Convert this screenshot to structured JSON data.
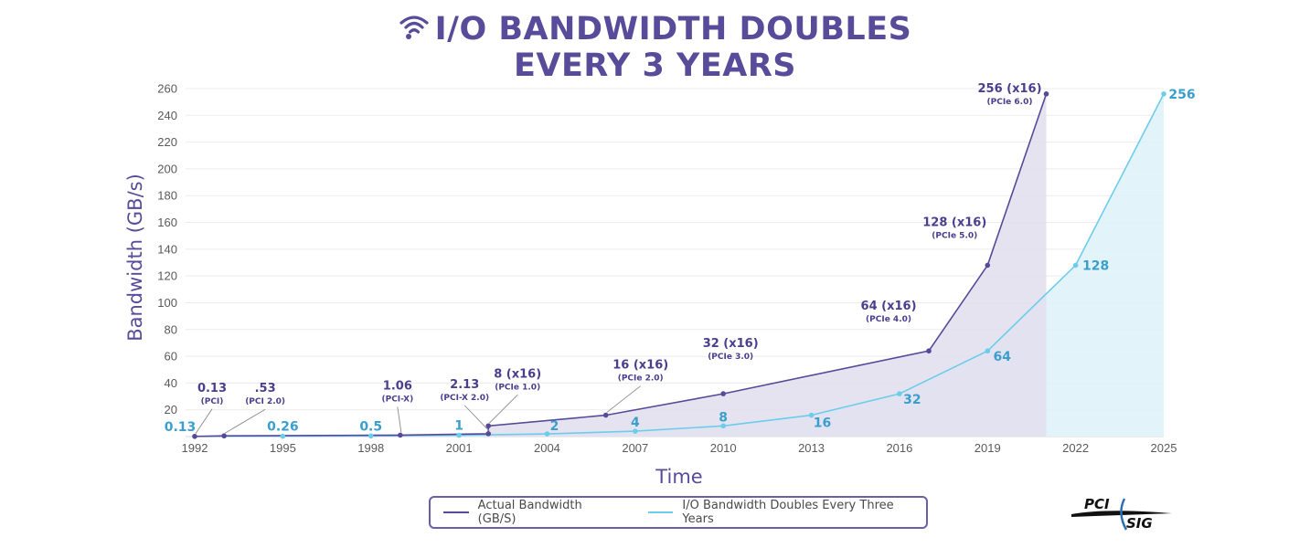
{
  "header": {
    "title_line1": "I/O BANDWIDTH DOUBLES",
    "title_line2": "EVERY 3 YEARS",
    "icon": "wifi-icon"
  },
  "colors": {
    "actual": "#564A98",
    "actual_fill": "#E2DEEE",
    "ideal": "#6CCDEB",
    "ideal_fill": "#DFF2FA",
    "title": "#574B9A",
    "ideal_label": "#3A9FCC"
  },
  "chart_data": {
    "type": "area",
    "xlabel": "Time",
    "ylabel": "Bandwidth (GB/s)",
    "xlim": [
      1992,
      2025
    ],
    "ylim": [
      0,
      265
    ],
    "x_ticks": [
      "1992",
      "1995",
      "1998",
      "2001",
      "2004",
      "2007",
      "2010",
      "2013",
      "2016",
      "2019",
      "2022",
      "2025"
    ],
    "y_ticks": [
      "20",
      "40",
      "60",
      "80",
      "100",
      "120",
      "140",
      "160",
      "180",
      "200",
      "220",
      "240",
      "260"
    ],
    "grid": "horizontal",
    "legend_position": "bottom-center",
    "series": [
      {
        "name": "Actual Bandwidth (GB/S)",
        "points": [
          {
            "x": 1992,
            "y": 0.13,
            "label": "0.13",
            "sub": "(PCI)"
          },
          {
            "x": 1993,
            "y": 0.53,
            "label": ".53",
            "sub": "(PCI 2.0)"
          },
          {
            "x": 1999,
            "y": 1.06,
            "label": "1.06",
            "sub": "(PCI-X)"
          },
          {
            "x": 2002,
            "y": 2.13,
            "label": "2.13",
            "sub": "(PCI-X 2.0)"
          },
          {
            "x": 2002,
            "y": 8,
            "label": "8 (x16)",
            "sub": "(PCIe 1.0)"
          },
          {
            "x": 2006,
            "y": 16,
            "label": "16 (x16)",
            "sub": "(PCIe 2.0)"
          },
          {
            "x": 2010,
            "y": 32,
            "label": "32 (x16)",
            "sub": "(PCIe 3.0)"
          },
          {
            "x": 2017,
            "y": 64,
            "label": "64 (x16)",
            "sub": "(PCIe 4.0)"
          },
          {
            "x": 2019,
            "y": 128,
            "label": "128 (x16)",
            "sub": "(PCIe 5.0)"
          },
          {
            "x": 2021,
            "y": 256,
            "label": "256 (x16)",
            "sub": "(PCIe 6.0)"
          }
        ]
      },
      {
        "name": "I/O Bandwidth Doubles Every Three Years",
        "points": [
          {
            "x": 1992,
            "y": 0.13,
            "label": "0.13"
          },
          {
            "x": 1995,
            "y": 0.26,
            "label": "0.26"
          },
          {
            "x": 1998,
            "y": 0.5,
            "label": "0.5"
          },
          {
            "x": 2001,
            "y": 1,
            "label": "1"
          },
          {
            "x": 2004,
            "y": 2,
            "label": "2"
          },
          {
            "x": 2007,
            "y": 4,
            "label": "4"
          },
          {
            "x": 2010,
            "y": 8,
            "label": "8"
          },
          {
            "x": 2013,
            "y": 16,
            "label": "16"
          },
          {
            "x": 2016,
            "y": 32,
            "label": "32"
          },
          {
            "x": 2019,
            "y": 64,
            "label": "64"
          },
          {
            "x": 2022,
            "y": 128,
            "label": "128"
          },
          {
            "x": 2025,
            "y": 256,
            "label": "256"
          }
        ]
      }
    ]
  },
  "legend": {
    "actual_label": "Actual Bandwidth (GB/S)",
    "ideal_label": "I/O Bandwidth Doubles Every Three Years"
  },
  "logo": {
    "top": "PCI",
    "bottom": "SIG"
  }
}
